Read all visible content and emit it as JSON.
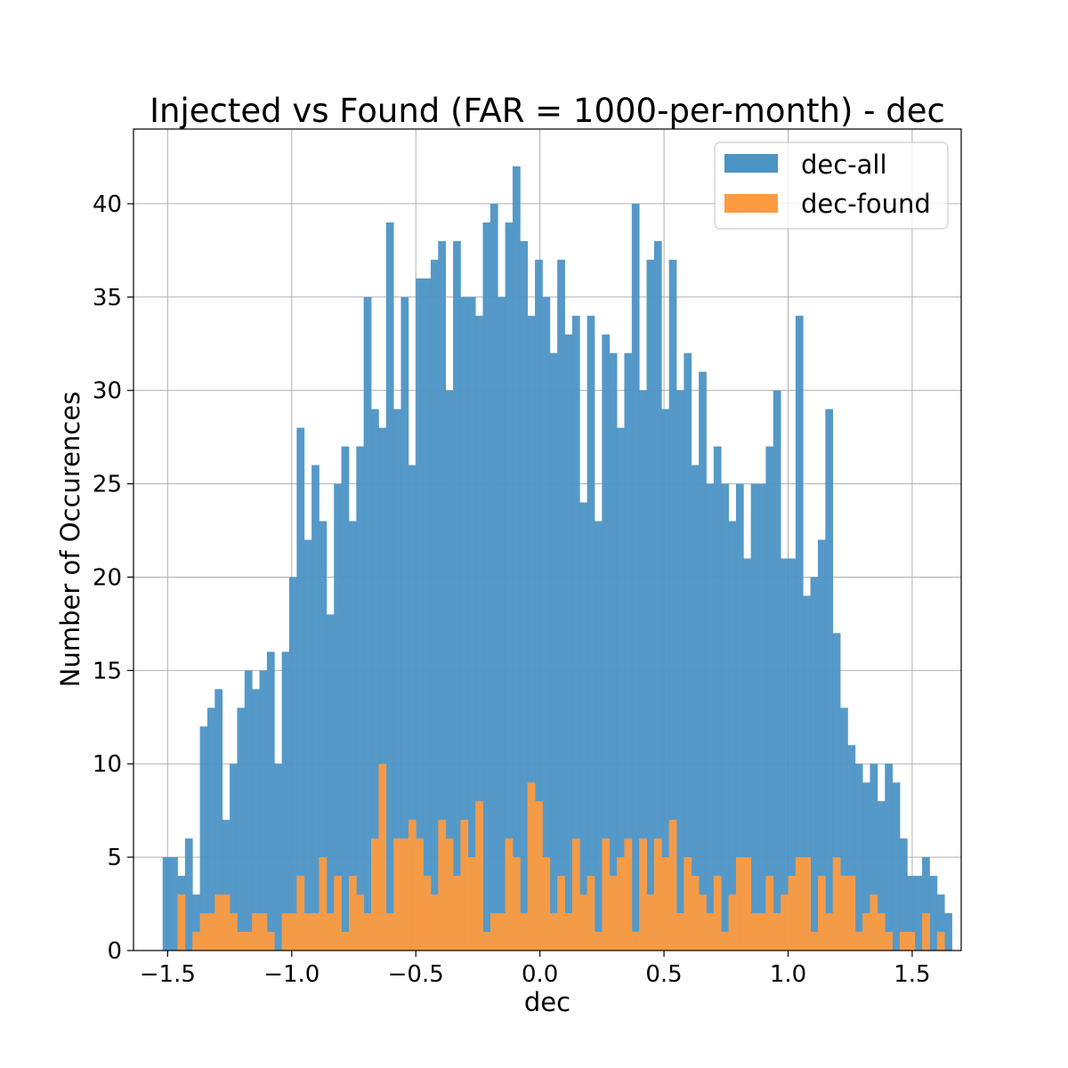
{
  "chart_data": {
    "type": "histogram",
    "title": "Injected vs Found (FAR = 1000-per-month) - dec",
    "xlabel": "dec",
    "ylabel": "Number of Occurences",
    "xlim": [
      -1.6375,
      1.6975
    ],
    "ylim": [
      0,
      44
    ],
    "bin_start": -1.52,
    "bin_width": 0.03,
    "xticks": [
      -1.5,
      -1.0,
      -0.5,
      0.0,
      0.5,
      1.0,
      1.5
    ],
    "xtick_labels": [
      "−1.5",
      "−1.0",
      "−0.5",
      "0.0",
      "0.5",
      "1.0",
      "1.5"
    ],
    "yticks": [
      0,
      5,
      10,
      15,
      20,
      25,
      30,
      35,
      40
    ],
    "ytick_labels": [
      "0",
      "5",
      "10",
      "15",
      "20",
      "25",
      "30",
      "35",
      "40"
    ],
    "grid": true,
    "legend_position": "upper right",
    "series": [
      {
        "name": "dec-all",
        "color": "#4c93c5",
        "values": [
          5,
          5,
          4,
          6,
          3,
          12,
          13,
          14,
          7,
          10,
          13,
          15,
          14,
          15,
          16,
          10,
          16,
          20,
          28,
          22,
          26,
          23,
          18,
          25,
          27,
          23,
          27,
          35,
          29,
          28,
          39,
          29,
          35,
          26,
          36,
          36,
          37,
          38,
          30,
          38,
          35,
          35,
          34,
          39,
          40,
          35,
          39,
          42,
          38,
          34,
          37,
          35,
          32,
          37,
          33,
          34,
          24,
          34,
          23,
          33,
          32,
          28,
          32,
          40,
          30,
          37,
          38,
          29,
          37,
          30,
          32,
          26,
          31,
          25,
          27,
          25,
          23,
          25,
          21,
          25,
          25,
          27,
          30,
          21,
          21,
          34,
          19,
          20,
          22,
          29,
          17,
          13,
          11,
          10,
          9,
          10,
          8,
          10,
          9,
          6,
          4,
          4,
          5,
          4,
          3,
          2
        ]
      },
      {
        "name": "dec-found",
        "color": "#fd9b41",
        "values": [
          0,
          3,
          0,
          1,
          2,
          2,
          3,
          3,
          2,
          1,
          1,
          2,
          2,
          1,
          0,
          2,
          2,
          4,
          2,
          2,
          5,
          2,
          4,
          1,
          4,
          3,
          2,
          6,
          10,
          2,
          6,
          6,
          7,
          6,
          4,
          3,
          7,
          6,
          4,
          7,
          5,
          8,
          1,
          2,
          2,
          6,
          5,
          2,
          9,
          8,
          5,
          2,
          4,
          2,
          6,
          3,
          4,
          1,
          6,
          4,
          5,
          6,
          1,
          6,
          3,
          6,
          5,
          7,
          2,
          5,
          4,
          3,
          2,
          4,
          1,
          3,
          5,
          5,
          2,
          2,
          4,
          2,
          3,
          4,
          5,
          5,
          1,
          4,
          2,
          5,
          4,
          4,
          1,
          2,
          3,
          2,
          1,
          0,
          1,
          1,
          0,
          2,
          0,
          1,
          0
        ],
        "offset_bins": 1
      }
    ]
  }
}
